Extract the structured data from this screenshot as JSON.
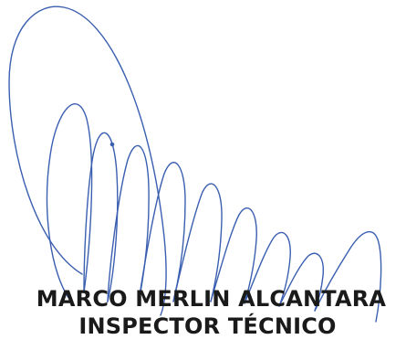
{
  "signatory": {
    "name": "MARCO MERLIN ALCANTARA",
    "title": "INSPECTOR TÉCNICO"
  },
  "signature": {
    "ink_color": "#3a5fb0"
  }
}
